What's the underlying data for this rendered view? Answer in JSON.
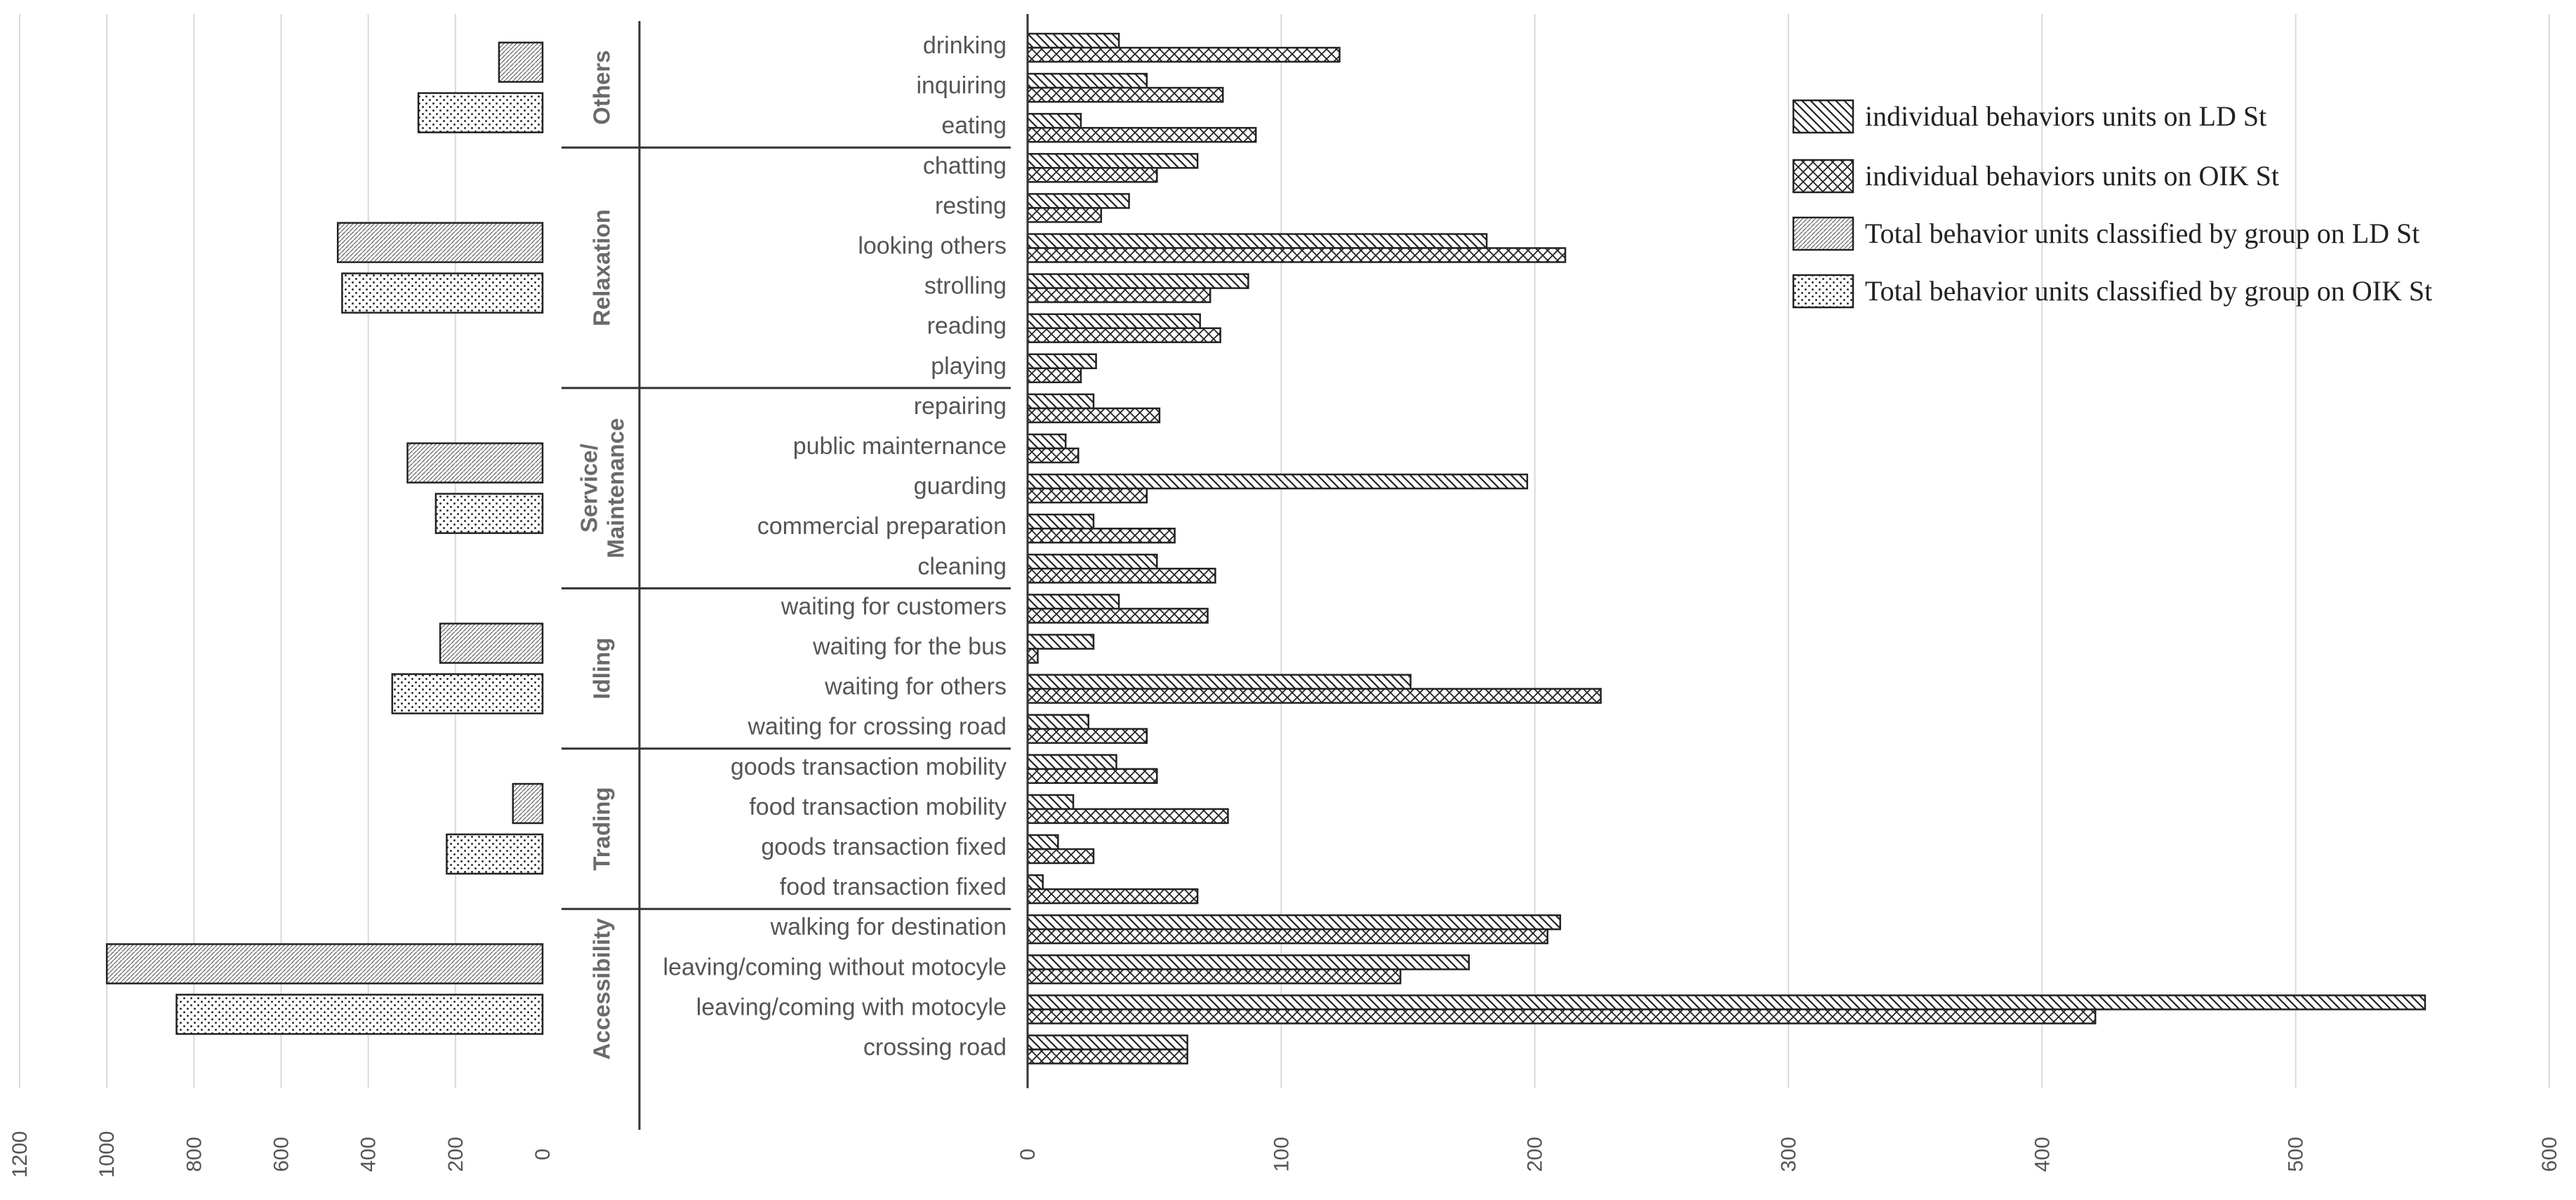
{
  "chart_data": {
    "type": "bar",
    "orientation": "horizontal",
    "legend": [
      "individual behaviors units on LD St",
      "individual behaviors units on OIK St",
      "Total behavior units classified by group on  LD St",
      "Total behavior units classified by group on OIK St"
    ],
    "legend_position": "top-right",
    "right_panel": {
      "xlim": [
        0,
        600
      ],
      "ticks": [
        "0",
        "100",
        "200",
        "300",
        "400",
        "500",
        "600"
      ],
      "series_names": [
        "individual behaviors units on LD St",
        "individual behaviors units on OIK St"
      ],
      "groups": [
        {
          "name": "Others",
          "items": [
            {
              "label": "drinking",
              "ld": 36,
              "oik": 123
            },
            {
              "label": "inquiring",
              "ld": 47,
              "oik": 77
            },
            {
              "label": "eating",
              "ld": 21,
              "oik": 90
            }
          ]
        },
        {
          "name": "Relaxation",
          "items": [
            {
              "label": "chatting",
              "ld": 67,
              "oik": 51
            },
            {
              "label": "resting",
              "ld": 40,
              "oik": 29
            },
            {
              "label": "looking others",
              "ld": 181,
              "oik": 212
            },
            {
              "label": "strolling",
              "ld": 87,
              "oik": 72
            },
            {
              "label": "reading",
              "ld": 68,
              "oik": 76
            },
            {
              "label": "playing",
              "ld": 27,
              "oik": 21
            }
          ]
        },
        {
          "name": "Service/ Maintenance",
          "items": [
            {
              "label": "repairing",
              "ld": 26,
              "oik": 52
            },
            {
              "label": "public mainternance",
              "ld": 15,
              "oik": 20
            },
            {
              "label": "guarding",
              "ld": 197,
              "oik": 47
            },
            {
              "label": "commercial preparation",
              "ld": 26,
              "oik": 58
            },
            {
              "label": "cleaning",
              "ld": 51,
              "oik": 74
            }
          ]
        },
        {
          "name": "Idling",
          "items": [
            {
              "label": "waiting for customers",
              "ld": 36,
              "oik": 71
            },
            {
              "label": "waiting for the bus",
              "ld": 26,
              "oik": 4
            },
            {
              "label": "waiting for others",
              "ld": 151,
              "oik": 226
            },
            {
              "label": "waiting for crossing road",
              "ld": 24,
              "oik": 47
            }
          ]
        },
        {
          "name": "Trading",
          "items": [
            {
              "label": "goods transaction mobility",
              "ld": 35,
              "oik": 51
            },
            {
              "label": "food transaction mobility",
              "ld": 18,
              "oik": 79
            },
            {
              "label": "goods transaction fixed",
              "ld": 12,
              "oik": 26
            },
            {
              "label": "food transaction fixed",
              "ld": 6,
              "oik": 67
            }
          ]
        },
        {
          "name": "Accessibility",
          "items": [
            {
              "label": "walking for destination",
              "ld": 210,
              "oik": 205
            },
            {
              "label": "leaving/coming without motocyle",
              "ld": 174,
              "oik": 147
            },
            {
              "label": "leaving/coming with motocyle",
              "ld": 551,
              "oik": 421
            },
            {
              "label": "crossing road",
              "ld": 63,
              "oik": 63
            }
          ]
        }
      ]
    },
    "left_panel": {
      "xlim": [
        0,
        1200
      ],
      "reversed": true,
      "ticks": [
        "1200",
        "1000",
        "800",
        "600",
        "400",
        "200",
        "0"
      ],
      "series_names": [
        "Total behavior units classified by group on  LD St",
        "Total behavior units classified by group on OIK St"
      ],
      "groups": [
        {
          "name": "Others",
          "ld": 100,
          "oik": 285
        },
        {
          "name": "Relaxation",
          "ld": 470,
          "oik": 460
        },
        {
          "name": "Service/ Maintenance",
          "ld": 310,
          "oik": 245
        },
        {
          "name": "Idling",
          "ld": 235,
          "oik": 345
        },
        {
          "name": "Trading",
          "ld": 68,
          "oik": 220
        },
        {
          "name": "Accessibility",
          "ld": 1000,
          "oik": 840
        }
      ]
    }
  }
}
